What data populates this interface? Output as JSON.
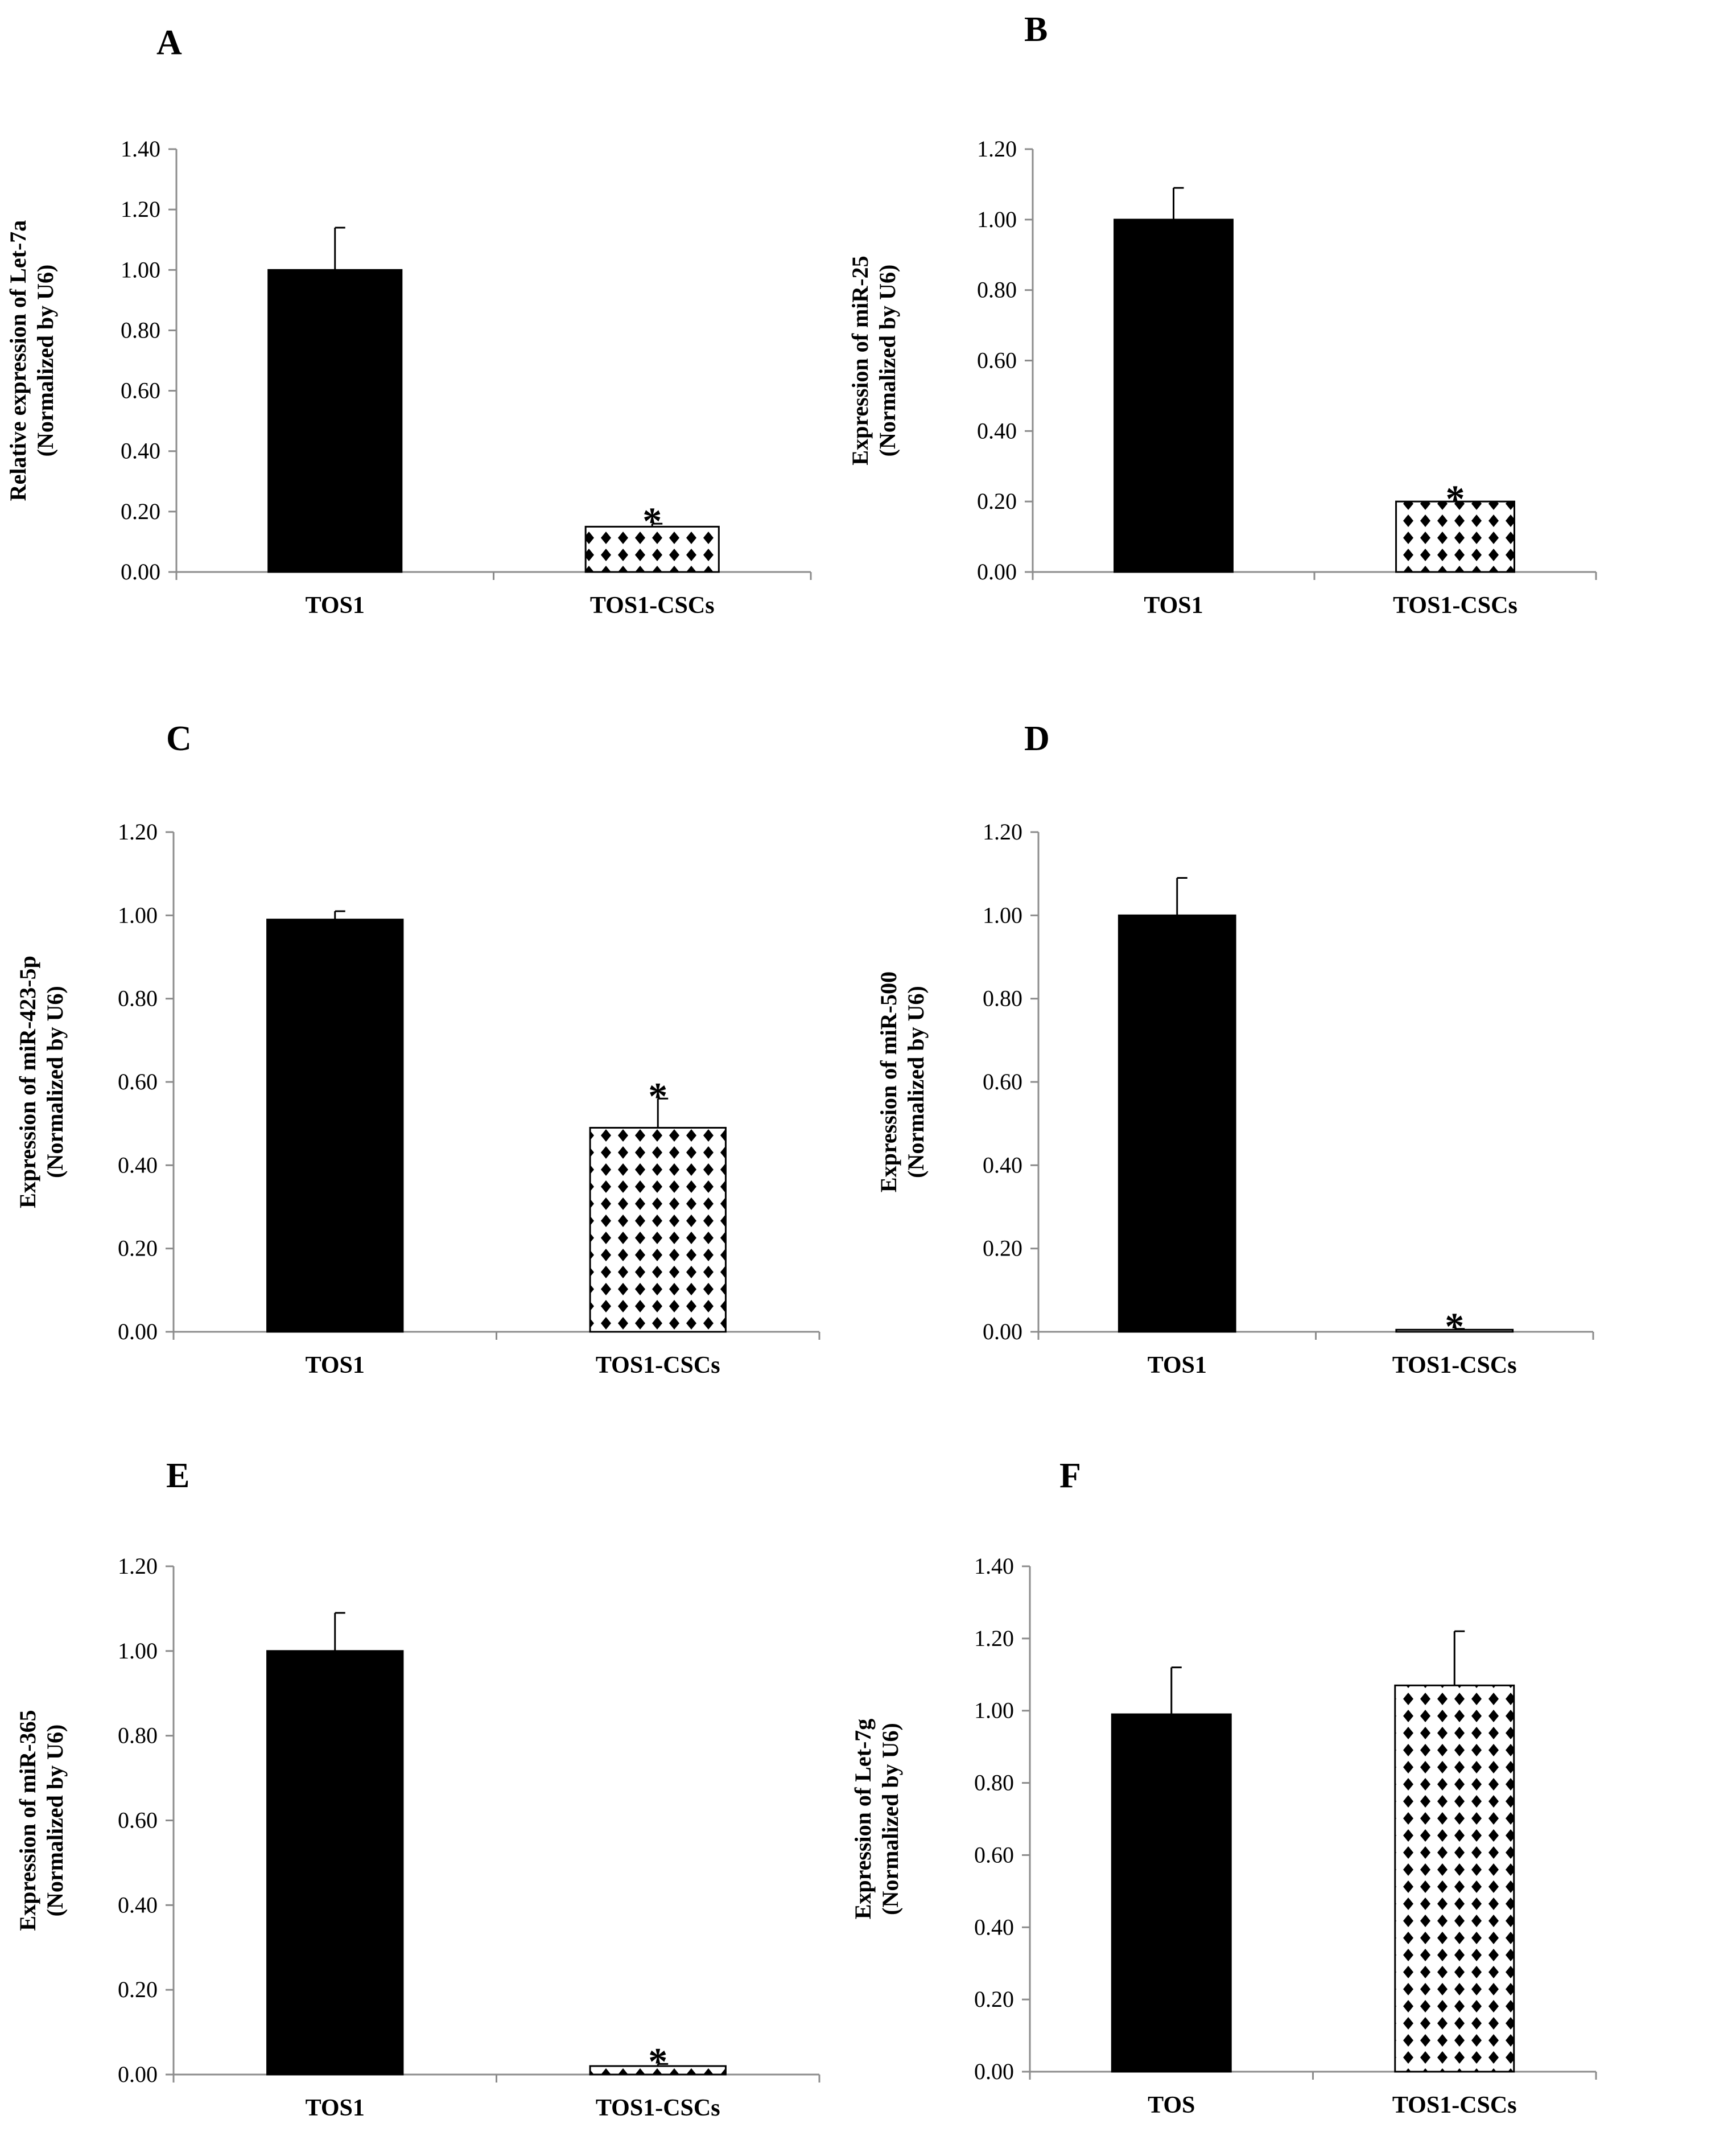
{
  "figure": {
    "colors": {
      "bar_solid": "#000000",
      "pattern_fg": "#000000",
      "pattern_bg": "#ffffff",
      "axis": "#8c8c8c",
      "text": "#000000"
    }
  },
  "chart_data": [
    {
      "panel": "A",
      "type": "bar",
      "categories": [
        "TOS1",
        "TOS1-CSCs"
      ],
      "values": [
        1.0,
        0.15
      ],
      "errors": [
        0.14,
        0.01
      ],
      "significance": [
        "",
        "*"
      ],
      "ylabel_line1": "Relative expression of Let-7a",
      "ylabel_line2": "(Normalized by U6)",
      "ylim": [
        0,
        1.4
      ],
      "yticks": [
        "0.00",
        "0.20",
        "0.40",
        "0.60",
        "0.80",
        "1.00",
        "1.20",
        "1.40"
      ]
    },
    {
      "panel": "B",
      "type": "bar",
      "categories": [
        "TOS1",
        "TOS1-CSCs"
      ],
      "values": [
        1.0,
        0.2
      ],
      "errors": [
        0.09,
        0.0
      ],
      "significance": [
        "",
        "*"
      ],
      "ylabel_line1": "Expression of miR-25",
      "ylabel_line2": "(Normalized by U6)",
      "ylim": [
        0,
        1.2
      ],
      "yticks": [
        "0.00",
        "0.20",
        "0.40",
        "0.60",
        "0.80",
        "1.00",
        "1.20"
      ]
    },
    {
      "panel": "C",
      "type": "bar",
      "categories": [
        "TOS1",
        "TOS1-CSCs"
      ],
      "values": [
        0.99,
        0.49
      ],
      "errors": [
        0.02,
        0.07
      ],
      "significance": [
        "",
        "*"
      ],
      "ylabel_line1": "Expression of miR-423-5p",
      "ylabel_line2": "(Normalized by U6)",
      "ylim": [
        0,
        1.2
      ],
      "yticks": [
        "0.00",
        "0.20",
        "0.40",
        "0.60",
        "0.80",
        "1.00",
        "1.20"
      ]
    },
    {
      "panel": "D",
      "type": "bar",
      "categories": [
        "TOS1",
        "TOS1-CSCs"
      ],
      "values": [
        1.0,
        0.005
      ],
      "errors": [
        0.09,
        0.002
      ],
      "significance": [
        "",
        "*"
      ],
      "ylabel_line1": "Expression of miR-500",
      "ylabel_line2": "(Normalized by U6)",
      "ylim": [
        0,
        1.2
      ],
      "yticks": [
        "0.00",
        "0.20",
        "0.40",
        "0.60",
        "0.80",
        "1.00",
        "1.20"
      ]
    },
    {
      "panel": "E",
      "type": "bar",
      "categories": [
        "TOS1",
        "TOS1-CSCs"
      ],
      "values": [
        1.0,
        0.02
      ],
      "errors": [
        0.09,
        0.005
      ],
      "significance": [
        "",
        "*"
      ],
      "ylabel_line1": "Expression of miR-365",
      "ylabel_line2": "(Normalized by U6)",
      "ylim": [
        0,
        1.2
      ],
      "yticks": [
        "0.00",
        "0.20",
        "0.40",
        "0.60",
        "0.80",
        "1.00",
        "1.20"
      ]
    },
    {
      "panel": "F",
      "type": "bar",
      "categories": [
        "TOS",
        "TOS1-CSCs"
      ],
      "values": [
        0.99,
        1.07
      ],
      "errors": [
        0.13,
        0.15
      ],
      "significance": [
        "",
        ""
      ],
      "ylabel_line1": "Expression of Let-7g",
      "ylabel_line2": "(Normalized by U6)",
      "ylim": [
        0,
        1.4
      ],
      "yticks": [
        "0.00",
        "0.20",
        "0.40",
        "0.60",
        "0.80",
        "1.00",
        "1.20",
        "1.40"
      ]
    }
  ]
}
